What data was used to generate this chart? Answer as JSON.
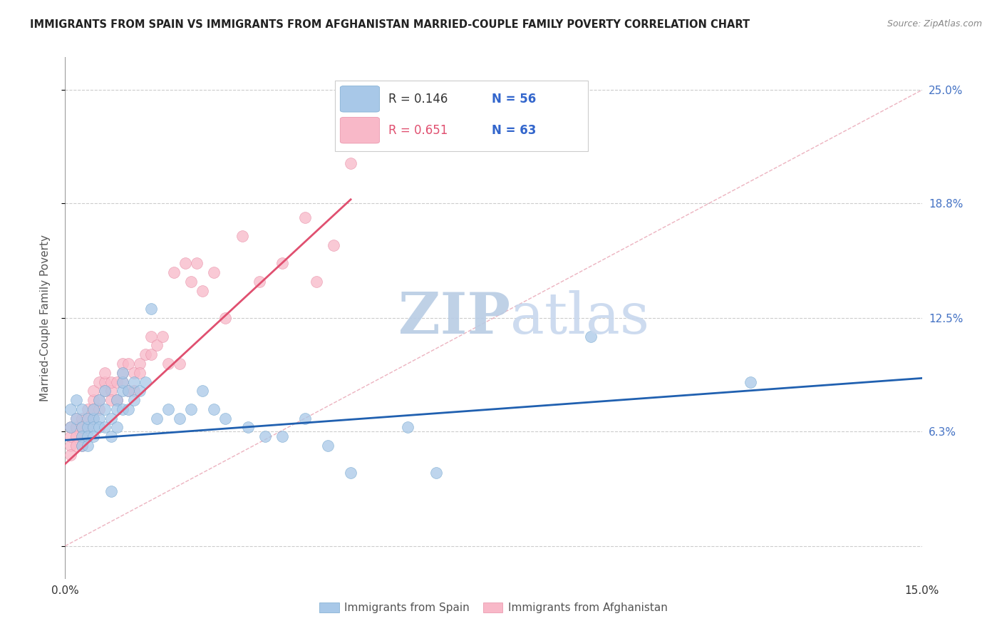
{
  "title": "IMMIGRANTS FROM SPAIN VS IMMIGRANTS FROM AFGHANISTAN MARRIED-COUPLE FAMILY POVERTY CORRELATION CHART",
  "source": "Source: ZipAtlas.com",
  "ylabel": "Married-Couple Family Poverty",
  "xmin": 0.0,
  "xmax": 0.15,
  "ymin": -0.018,
  "ymax": 0.268,
  "yticks": [
    0.0,
    0.063,
    0.125,
    0.188,
    0.25
  ],
  "ytick_labels": [
    "",
    "6.3%",
    "12.5%",
    "18.8%",
    "25.0%"
  ],
  "xticks": [
    0.0,
    0.025,
    0.05,
    0.075,
    0.1,
    0.125,
    0.15
  ],
  "xtick_labels": [
    "0.0%",
    "",
    "",
    "",
    "",
    "",
    "15.0%"
  ],
  "grid_color": "#cccccc",
  "title_color": "#222222",
  "title_fontsize": 11,
  "spain_color": "#a8c8e8",
  "spain_edge": "#7aaad0",
  "afghanistan_color": "#f8b8c8",
  "afghanistan_edge": "#e890a8",
  "spain_R": 0.146,
  "spain_N": 56,
  "afghanistan_R": 0.651,
  "afghanistan_N": 63,
  "watermark_zip": "ZIP",
  "watermark_atlas": "atlas",
  "watermark_color": "#ccdcf0",
  "spain_scatter_x": [
    0.001,
    0.001,
    0.002,
    0.002,
    0.003,
    0.003,
    0.003,
    0.003,
    0.004,
    0.004,
    0.004,
    0.004,
    0.005,
    0.005,
    0.005,
    0.005,
    0.006,
    0.006,
    0.006,
    0.007,
    0.007,
    0.007,
    0.008,
    0.008,
    0.008,
    0.009,
    0.009,
    0.009,
    0.01,
    0.01,
    0.01,
    0.01,
    0.011,
    0.011,
    0.012,
    0.012,
    0.013,
    0.014,
    0.015,
    0.016,
    0.018,
    0.02,
    0.022,
    0.024,
    0.026,
    0.028,
    0.032,
    0.035,
    0.038,
    0.042,
    0.046,
    0.05,
    0.06,
    0.065,
    0.092,
    0.12
  ],
  "spain_scatter_y": [
    0.065,
    0.075,
    0.07,
    0.08,
    0.065,
    0.075,
    0.06,
    0.055,
    0.065,
    0.07,
    0.06,
    0.055,
    0.07,
    0.065,
    0.075,
    0.06,
    0.07,
    0.065,
    0.08,
    0.075,
    0.085,
    0.065,
    0.07,
    0.06,
    0.03,
    0.08,
    0.065,
    0.075,
    0.085,
    0.075,
    0.09,
    0.095,
    0.085,
    0.075,
    0.09,
    0.08,
    0.085,
    0.09,
    0.13,
    0.07,
    0.075,
    0.07,
    0.075,
    0.085,
    0.075,
    0.07,
    0.065,
    0.06,
    0.06,
    0.07,
    0.055,
    0.04,
    0.065,
    0.04,
    0.115,
    0.09
  ],
  "afghanistan_scatter_x": [
    0.001,
    0.001,
    0.001,
    0.001,
    0.002,
    0.002,
    0.002,
    0.002,
    0.003,
    0.003,
    0.003,
    0.003,
    0.003,
    0.004,
    0.004,
    0.004,
    0.005,
    0.005,
    0.005,
    0.005,
    0.006,
    0.006,
    0.006,
    0.007,
    0.007,
    0.007,
    0.008,
    0.008,
    0.008,
    0.009,
    0.009,
    0.009,
    0.01,
    0.01,
    0.01,
    0.011,
    0.011,
    0.012,
    0.012,
    0.013,
    0.013,
    0.014,
    0.015,
    0.015,
    0.016,
    0.017,
    0.018,
    0.019,
    0.02,
    0.021,
    0.022,
    0.023,
    0.024,
    0.026,
    0.028,
    0.031,
    0.034,
    0.038,
    0.042,
    0.044,
    0.047,
    0.05,
    0.052
  ],
  "afghanistan_scatter_y": [
    0.055,
    0.06,
    0.065,
    0.05,
    0.065,
    0.06,
    0.055,
    0.07,
    0.065,
    0.06,
    0.07,
    0.055,
    0.065,
    0.075,
    0.07,
    0.065,
    0.08,
    0.075,
    0.07,
    0.085,
    0.08,
    0.09,
    0.075,
    0.09,
    0.095,
    0.085,
    0.085,
    0.09,
    0.08,
    0.08,
    0.09,
    0.08,
    0.095,
    0.1,
    0.09,
    0.1,
    0.085,
    0.095,
    0.085,
    0.1,
    0.095,
    0.105,
    0.105,
    0.115,
    0.11,
    0.115,
    0.1,
    0.15,
    0.1,
    0.155,
    0.145,
    0.155,
    0.14,
    0.15,
    0.125,
    0.17,
    0.145,
    0.155,
    0.18,
    0.145,
    0.165,
    0.21,
    0.235
  ],
  "spain_line_color": "#2060b0",
  "spain_line_x": [
    0.0,
    0.15
  ],
  "spain_line_y": [
    0.058,
    0.092
  ],
  "afghanistan_line_color": "#e05070",
  "afghanistan_line_x": [
    0.0,
    0.05
  ],
  "afghanistan_line_y": [
    0.045,
    0.19
  ],
  "diag_line_color": "#e8a0b0",
  "diag_line_x": [
    0.0,
    0.15
  ],
  "diag_line_y": [
    0.0,
    0.25
  ],
  "legend_box_color": "#ffffff",
  "legend_box_edge": "#cccccc",
  "legend_spain_R_color": "#444444",
  "legend_spain_N_color": "#3366cc",
  "legend_afg_R_color": "#e05070",
  "legend_afg_N_color": "#3366cc",
  "bottom_legend_color": "#555555"
}
